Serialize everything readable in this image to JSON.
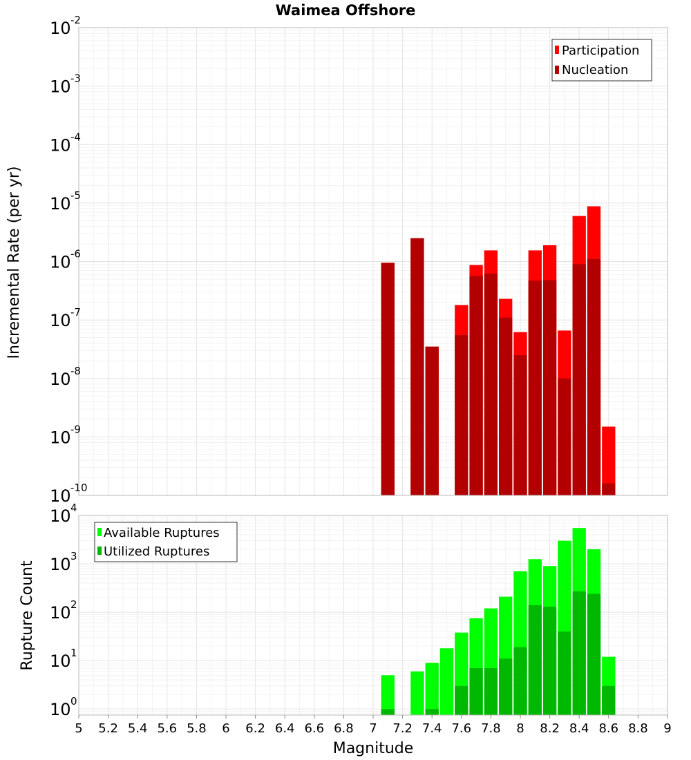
{
  "chart_data": [
    {
      "type": "bar",
      "title": "Waimea Offshore",
      "xlabel": "",
      "ylabel": "Incremental Rate (per yr)",
      "yscale": "log",
      "ylim": [
        1e-10,
        0.01
      ],
      "xlim": [
        5,
        9
      ],
      "grid": true,
      "legend_position": "top-right",
      "bin_width": 0.1,
      "x": [
        7.1,
        7.3,
        7.4,
        7.6,
        7.7,
        7.8,
        7.9,
        8.0,
        8.1,
        8.2,
        8.3,
        8.4,
        8.5,
        8.6
      ],
      "series": [
        {
          "name": "Participation",
          "color": "#ff0000",
          "values": [
            9.5e-07,
            2.5e-06,
            3.5e-08,
            1.8e-07,
            8.7e-07,
            1.55e-06,
            2.3e-07,
            6.2e-08,
            1.55e-06,
            1.9e-06,
            6.6e-08,
            6e-06,
            8.8e-06,
            1.5e-09
          ]
        },
        {
          "name": "Nucleation",
          "color": "#b20000",
          "values": [
            9.5e-07,
            2.5e-06,
            3.5e-08,
            5.5e-08,
            5.7e-07,
            6.2e-07,
            1.1e-07,
            2.5e-08,
            4.7e-07,
            4.8e-07,
            1e-08,
            9e-07,
            1.1e-06,
            1.6e-10
          ]
        }
      ],
      "y_tick_bases": [
        "10",
        "10",
        "10",
        "10",
        "10",
        "10",
        "10",
        "10",
        "10"
      ],
      "y_tick_exponents": [
        "-10",
        "-9",
        "-8",
        "-7",
        "-6",
        "-5",
        "-4",
        "-3",
        "-2"
      ]
    },
    {
      "type": "bar",
      "title": "",
      "xlabel": "Magnitude",
      "ylabel": "Rupture Count",
      "yscale": "log",
      "ylim": [
        0.75,
        10000
      ],
      "xlim": [
        5,
        9
      ],
      "grid": true,
      "legend_position": "top-left",
      "bin_width": 0.1,
      "x": [
        7.1,
        7.3,
        7.4,
        7.5,
        7.6,
        7.7,
        7.8,
        7.9,
        8.0,
        8.1,
        8.2,
        8.3,
        8.4,
        8.5,
        8.6
      ],
      "series": [
        {
          "name": "Available Ruptures",
          "color": "#00ff00",
          "values": [
            5,
            6,
            9,
            18,
            38,
            75,
            120,
            210,
            700,
            1250,
            900,
            3000,
            5500,
            2000,
            12
          ]
        },
        {
          "name": "Utilized Ruptures",
          "color": "#00b800",
          "values": [
            1,
            0,
            1,
            0,
            3,
            7,
            7,
            11,
            19,
            140,
            130,
            40,
            270,
            240,
            3
          ]
        }
      ],
      "x_tick_labels": [
        "5",
        "5.2",
        "5.4",
        "5.6",
        "5.8",
        "6",
        "6.2",
        "6.4",
        "6.6",
        "6.8",
        "7",
        "7.2",
        "7.4",
        "7.6",
        "7.8",
        "8",
        "8.2",
        "8.4",
        "8.6",
        "8.8",
        "9"
      ],
      "y_tick_bases": [
        "10",
        "10",
        "10",
        "10",
        "10"
      ],
      "y_tick_exponents": [
        "0",
        "1",
        "2",
        "3",
        "4"
      ]
    }
  ]
}
